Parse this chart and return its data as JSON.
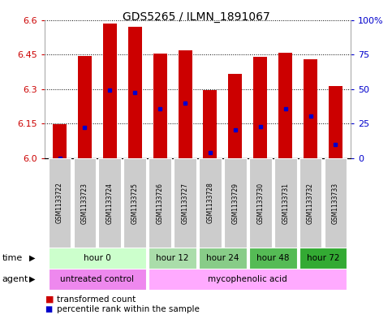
{
  "title": "GDS5265 / ILMN_1891067",
  "samples": [
    "GSM1133722",
    "GSM1133723",
    "GSM1133724",
    "GSM1133725",
    "GSM1133726",
    "GSM1133727",
    "GSM1133728",
    "GSM1133729",
    "GSM1133730",
    "GSM1133731",
    "GSM1133732",
    "GSM1133733"
  ],
  "bar_bottom": 6.0,
  "bar_tops": [
    6.147,
    6.443,
    6.585,
    6.573,
    6.456,
    6.468,
    6.295,
    6.368,
    6.441,
    6.459,
    6.432,
    6.315
  ],
  "blue_dots": [
    6.0,
    6.135,
    6.296,
    6.287,
    6.215,
    6.24,
    6.025,
    6.125,
    6.138,
    6.215,
    6.185,
    6.06
  ],
  "ylim": [
    6.0,
    6.6
  ],
  "yticks": [
    6.0,
    6.15,
    6.3,
    6.45,
    6.6
  ],
  "right_yticks": [
    0,
    25,
    50,
    75,
    100
  ],
  "bar_color": "#cc0000",
  "blue_color": "#0000cc",
  "time_groups": [
    {
      "label": "hour 0",
      "start": 0,
      "end": 3,
      "color": "#ccffcc"
    },
    {
      "label": "hour 12",
      "start": 4,
      "end": 5,
      "color": "#aaddaa"
    },
    {
      "label": "hour 24",
      "start": 6,
      "end": 7,
      "color": "#88cc88"
    },
    {
      "label": "hour 48",
      "start": 8,
      "end": 9,
      "color": "#55bb55"
    },
    {
      "label": "hour 72",
      "start": 10,
      "end": 11,
      "color": "#33aa33"
    }
  ],
  "time_colors": [
    "#ccffcc",
    "#aaddaa",
    "#88cc88",
    "#55bb55",
    "#33aa33"
  ],
  "agent_groups": [
    {
      "label": "untreated control",
      "start": 0,
      "end": 3,
      "color": "#ee88ee"
    },
    {
      "label": "mycophenolic acid",
      "start": 4,
      "end": 11,
      "color": "#ffaaff"
    }
  ],
  "agent_colors": [
    "#ee88ee",
    "#ffaaff"
  ],
  "legend_red": "transformed count",
  "legend_blue": "percentile rank within the sample",
  "bar_width": 0.55,
  "ytick_color": "#cc0000",
  "right_ytick_color": "#0000cc"
}
